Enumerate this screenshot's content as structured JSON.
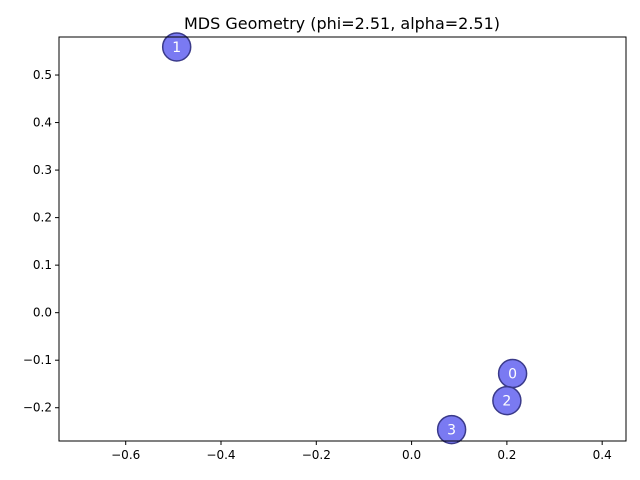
{
  "chart_data": {
    "type": "scatter",
    "title": "MDS Geometry (phi=2.51, alpha=2.51)",
    "xlabel": "",
    "ylabel": "",
    "xlim": [
      -0.74,
      0.45
    ],
    "ylim": [
      -0.27,
      0.58
    ],
    "x_ticks": [
      -0.6,
      -0.4,
      -0.2,
      0.0,
      0.2,
      0.4
    ],
    "x_tick_labels": [
      "−0.6",
      "−0.4",
      "−0.2",
      "0.0",
      "0.2",
      "0.4"
    ],
    "y_ticks": [
      -0.2,
      -0.1,
      0.0,
      0.1,
      0.2,
      0.3,
      0.4,
      0.5
    ],
    "y_tick_labels": [
      "−0.2",
      "−0.1",
      "0.0",
      "0.1",
      "0.2",
      "0.3",
      "0.4",
      "0.5"
    ],
    "grid": false,
    "marker_color": "#5555ee",
    "marker_edge_color": "#3a3a8a",
    "label_color": "#ffffff",
    "points": [
      {
        "label": "0",
        "x": 0.212,
        "y": -0.128
      },
      {
        "label": "1",
        "x": -0.493,
        "y": 0.559
      },
      {
        "label": "2",
        "x": 0.2,
        "y": -0.185
      },
      {
        "label": "3",
        "x": 0.084,
        "y": -0.246
      }
    ]
  }
}
